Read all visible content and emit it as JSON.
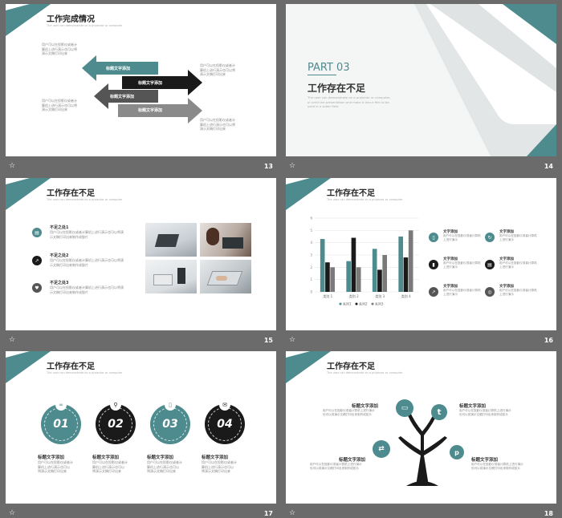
{
  "colors": {
    "accent": "#4d8b8e",
    "dark": "#1a1a1a",
    "gray": "#7a7a7a"
  },
  "slides": {
    "s13": {
      "number": "13",
      "title": "工作完成情况",
      "subtitle": "The user can demonstrate on a projector or computer",
      "text_left_top": "用户可以在投影仪或者计\n算机上进行演示也可以将\n演示文稿打印出来",
      "text_left_bottom": "用户可以在投影仪或者计\n算机上进行演示也可以将\n演示文稿打印出来",
      "text_right_top": "用户可以在投影仪或者计\n算机上进行演示也可以将\n演示文稿打印出来",
      "text_right_bottom": "用户可以在投影仪或者计\n算机上进行演示也可以将\n演示文稿打印出来",
      "arrow_labels": [
        "标题文字添加",
        "标题文字添加",
        "标题文字添加",
        "标题文字添加"
      ]
    },
    "s14": {
      "number": "14",
      "part": "PART 03",
      "title": "工作存在不足",
      "desc": "The user can demonstrate on a projector or computer,\nor print the presentation and make it into a film to be\nused in a wider field"
    },
    "s15": {
      "number": "15",
      "title": "工作存在不足",
      "subtitle": "The user can demonstrate on a projector or computer",
      "items": [
        {
          "title": "不足之处1",
          "text": "用户可以在投影仪或者计算机上进行演示也可以将演\n示文稿打印出来制作成胶片",
          "icon": "chart-icon"
        },
        {
          "title": "不足之处2",
          "text": "用户可以在投影仪或者计算机上进行演示也可以将演\n示文稿打印出来制作成胶片",
          "icon": "trend-icon"
        },
        {
          "title": "不足之处3",
          "text": "用户可以在投影仪或者计算机上进行演示也可以将演\n示文稿打印出来制作成胶片",
          "icon": "heart-icon"
        }
      ]
    },
    "s16": {
      "number": "16",
      "title": "工作存在不足",
      "subtitle": "The user can demonstrate on a projector or computer",
      "items": [
        {
          "title": "文字添加",
          "text": "用户可以在投影仪或者计算机上进行演示",
          "icon": "doc-icon"
        },
        {
          "title": "文字添加",
          "text": "用户可以在投影仪或者计算机上进行演示",
          "icon": "refresh-icon"
        },
        {
          "title": "文字添加",
          "text": "用户可以在投影仪或者计算机上进行演示",
          "icon": "phone-icon"
        },
        {
          "title": "文字添加",
          "text": "用户可以在投影仪或者计算机上进行演示",
          "icon": "chart-icon"
        },
        {
          "title": "文字添加",
          "text": "用户可以在投影仪或者计算机上进行演示",
          "icon": "trend-icon"
        },
        {
          "title": "文字添加",
          "text": "用户可以在投影仪或者计算机上进行演示",
          "icon": "target-icon"
        }
      ]
    },
    "s17": {
      "number": "17",
      "title": "工作存在不足",
      "subtitle": "The user can demonstrate on a projector or computer",
      "items": [
        {
          "num": "01",
          "title": "标题文字添加",
          "text": "用户可以在投影仪或者计\n算机上进行演示也可以\n将演示文稿打印出来",
          "icon": "link-icon"
        },
        {
          "num": "02",
          "title": "标题文字添加",
          "text": "用户可以在投影仪或者计\n算机上进行演示也可以\n将演示文稿打印出来",
          "icon": "bike-icon"
        },
        {
          "num": "03",
          "title": "标题文字添加",
          "text": "用户可以在投影仪或者计\n算机上进行演示也可以\n将演示文稿打印出来",
          "icon": "doc-icon"
        },
        {
          "num": "04",
          "title": "标题文字添加",
          "text": "用户可以在投影仪或者计\n算机上进行演示也可以\n将演示文稿打印出来",
          "icon": "mail-icon"
        }
      ]
    },
    "s18": {
      "number": "18",
      "title": "工作存在不足",
      "subtitle": "The user can demonstrate on a projector or computer",
      "items": [
        {
          "title": "标题文字添加",
          "text": "用户可以在投影仪或者计算机上进行演示\n也可以将演示文稿打印出来制作成胶片"
        },
        {
          "title": "标题文字添加",
          "text": "用户可以在投影仪或者计算机上进行演示\n也可以将演示文稿打印出来制作成胶片"
        },
        {
          "title": "标题文字添加",
          "text": "用户可以在投影仪或者计算机上进行演示\n也可以将演示文稿打印出来制作成胶片"
        },
        {
          "title": "标题文字添加",
          "text": "用户可以在投影仪或者计算机上进行演示\n也可以将演示文稿打印出来制作成胶片"
        }
      ]
    }
  },
  "chart_data": {
    "type": "bar",
    "categories": [
      "类别 1",
      "类别 2",
      "类别 3",
      "类别 4"
    ],
    "series": [
      {
        "name": "系列1",
        "values": [
          4.3,
          2.5,
          3.5,
          4.5
        ],
        "color": "#4d8b8e"
      },
      {
        "name": "系列2",
        "values": [
          2.4,
          4.4,
          1.8,
          2.8
        ],
        "color": "#1a1a1a"
      },
      {
        "name": "系列3",
        "values": [
          2.0,
          2.0,
          3.0,
          5.0
        ],
        "color": "#7a7a7a"
      }
    ],
    "ylim": [
      0,
      6
    ],
    "yticks": [
      "0",
      "1",
      "2",
      "3",
      "4",
      "5",
      "6"
    ],
    "grid": true,
    "legend": "bottom"
  }
}
